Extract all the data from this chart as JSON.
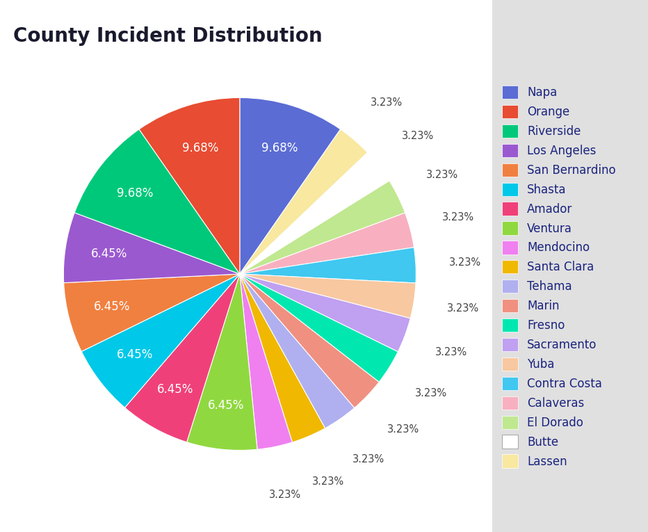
{
  "title": "County Incident Distribution",
  "title_fontsize": 20,
  "background_color": "#e0e0e0",
  "chart_bg": "#ffffff",
  "categories": [
    "Napa",
    "Lassen",
    "Butte",
    "El Dorado",
    "Calaveras",
    "Contra Costa",
    "Yuba",
    "Sacramento",
    "Fresno",
    "Marin",
    "Tehama",
    "Santa Clara",
    "Mendocino",
    "Ventura",
    "Amador",
    "Shasta",
    "San Bernardino",
    "Los Angeles",
    "Riverside",
    "Orange"
  ],
  "values": [
    9.68,
    3.23,
    3.23,
    3.23,
    3.23,
    3.23,
    3.23,
    3.23,
    3.23,
    3.23,
    3.23,
    3.23,
    3.23,
    6.45,
    6.45,
    6.45,
    6.45,
    6.45,
    9.68,
    9.68
  ],
  "colors": [
    "#5b6cd4",
    "#f8e8a0",
    "#ffffff",
    "#c0e890",
    "#f8b0c0",
    "#40c8f0",
    "#f8c8a0",
    "#c0a0f0",
    "#00e8b0",
    "#f09080",
    "#b0b0f0",
    "#f0b800",
    "#f080f0",
    "#90d840",
    "#f0407a",
    "#00c8e8",
    "#f08040",
    "#9b59d0",
    "#00c87a",
    "#e84c32"
  ],
  "legend_categories": [
    "Napa",
    "Orange",
    "Riverside",
    "Los Angeles",
    "San Bernardino",
    "Shasta",
    "Amador",
    "Ventura",
    "Mendocino",
    "Santa Clara",
    "Tehama",
    "Marin",
    "Fresno",
    "Sacramento",
    "Yuba",
    "Contra Costa",
    "Calaveras",
    "El Dorado",
    "Butte",
    "Lassen"
  ],
  "legend_colors": [
    "#5b6cd4",
    "#e84c32",
    "#00c87a",
    "#9b59d0",
    "#f08040",
    "#00c8e8",
    "#f0407a",
    "#90d840",
    "#f080f0",
    "#f0b800",
    "#b0b0f0",
    "#f09080",
    "#00e8b0",
    "#c0a0f0",
    "#f8c8a0",
    "#40c8f0",
    "#f8b0c0",
    "#c0e890",
    "#ffffff",
    "#f8e8a0"
  ],
  "label_fontsize": 11,
  "legend_fontsize": 12,
  "text_color": "#1a237e"
}
